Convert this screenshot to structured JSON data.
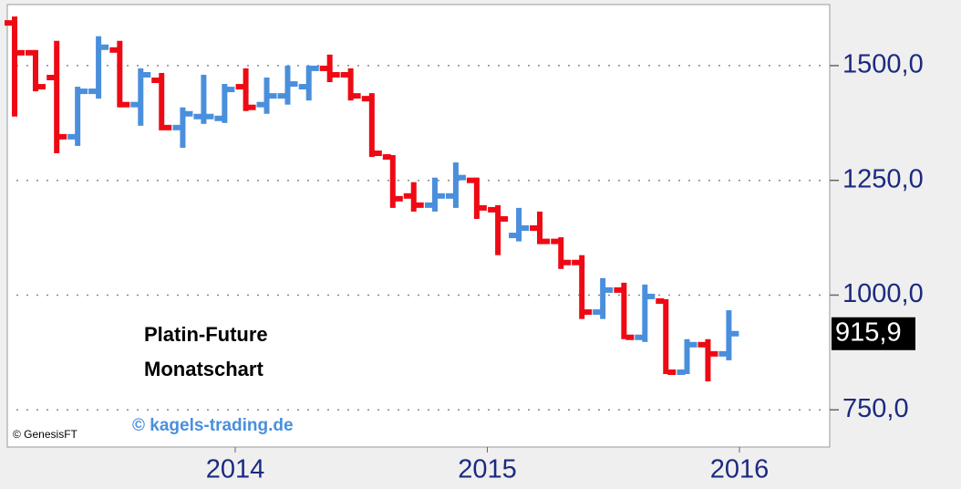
{
  "chart_data": {
    "type": "ohlc",
    "annotations": [
      "Platin-Future",
      "Monatschart"
    ],
    "source": "© kagels-trading.de",
    "credit": "© GenesisFT",
    "x": [
      2013.125,
      2013.208,
      2013.292,
      2013.375,
      2013.458,
      2013.542,
      2013.625,
      2013.708,
      2013.792,
      2013.875,
      2013.958,
      2014.042,
      2014.125,
      2014.208,
      2014.292,
      2014.375,
      2014.458,
      2014.542,
      2014.625,
      2014.708,
      2014.792,
      2014.875,
      2014.958,
      2015.042,
      2015.125,
      2015.208,
      2015.292,
      2015.375,
      2015.458,
      2015.542,
      2015.625,
      2015.708,
      2015.792,
      2015.875,
      2015.958
    ],
    "open": [
      1593,
      1528,
      1474,
      1345,
      1444,
      1534,
      1415,
      1468,
      1365,
      1389,
      1385,
      1454,
      1415,
      1434,
      1454,
      1494,
      1480,
      1428,
      1301,
      1216,
      1196,
      1216,
      1250,
      1186,
      1130,
      1146,
      1117,
      1071,
      963,
      1011,
      908,
      987,
      832,
      892,
      872
    ],
    "high": [
      1607,
      1534,
      1554,
      1454,
      1564,
      1554,
      1494,
      1484,
      1409,
      1480,
      1460,
      1494,
      1474,
      1500,
      1500,
      1524,
      1494,
      1440,
      1305,
      1246,
      1256,
      1289,
      1256,
      1196,
      1190,
      1182,
      1126,
      1087,
      1037,
      1027,
      1023,
      991,
      904,
      904,
      967
    ],
    "low": [
      1389,
      1444,
      1309,
      1325,
      1428,
      1409,
      1369,
      1359,
      1321,
      1373,
      1375,
      1401,
      1395,
      1415,
      1424,
      1464,
      1424,
      1301,
      1190,
      1182,
      1182,
      1190,
      1166,
      1087,
      1117,
      1111,
      1057,
      948,
      948,
      904,
      898,
      828,
      828,
      812,
      858
    ],
    "close": [
      1528,
      1454,
      1345,
      1444,
      1540,
      1415,
      1480,
      1365,
      1395,
      1389,
      1448,
      1409,
      1434,
      1460,
      1494,
      1480,
      1434,
      1309,
      1210,
      1196,
      1216,
      1256,
      1190,
      1166,
      1146,
      1117,
      1071,
      963,
      1011,
      908,
      997,
      832,
      892,
      872,
      915.9
    ],
    "close_labels": [
      null,
      null,
      null,
      null,
      null,
      null,
      null,
      null,
      null,
      null,
      null,
      null,
      null,
      null,
      null,
      null,
      null,
      null,
      null,
      null,
      null,
      null,
      null,
      null,
      null,
      null,
      null,
      null,
      null,
      null,
      null,
      null,
      null,
      null,
      "915,9"
    ],
    "up_color": "#4a8fdc",
    "down_color": "#ee0a14",
    "xlim": [
      2013.096,
      2016.358
    ],
    "xticks": [
      2014,
      2015,
      2016
    ],
    "ylim": [
      669,
      1633
    ],
    "yticks": [
      {
        "value": 750,
        "label": "750,0"
      },
      {
        "value": 1000,
        "label": "1000,0"
      },
      {
        "value": 1250,
        "label": "1250,0"
      },
      {
        "value": 1500,
        "label": "1500,0"
      }
    ],
    "grid": true
  }
}
